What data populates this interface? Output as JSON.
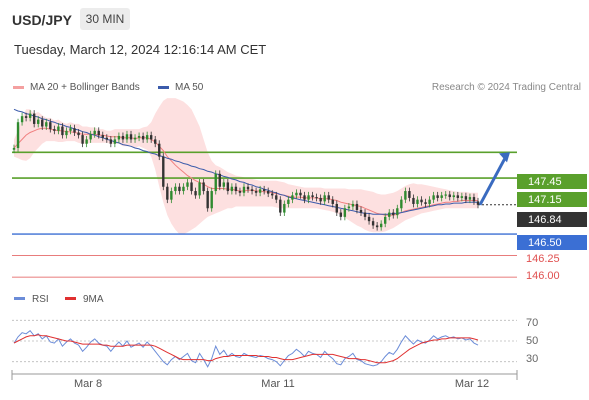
{
  "header": {
    "symbol": "USD/JPY",
    "timeframe": "30 MIN",
    "datetime": "Tuesday, March 12, 2024 12:16:14 AM CET"
  },
  "legend": {
    "items": [
      {
        "label": "MA 20 + Bollinger Bands",
        "color": "#f08080"
      },
      {
        "label": "MA 50",
        "color": "#3b5bab"
      }
    ],
    "credit": "Research © 2024 Trading Central"
  },
  "chart_data": [
    {
      "type": "line",
      "title": "",
      "price_range": [
        145.85,
        148.0
      ],
      "x_ticks": [
        "Mar 8",
        "Mar 11",
        "Mar 12"
      ],
      "levels": [
        {
          "label": "147.45",
          "value": 147.45,
          "role": "resistance",
          "color": "#5aa02c"
        },
        {
          "label": "147.15",
          "value": 147.15,
          "role": "resistance",
          "color": "#5aa02c"
        },
        {
          "label": "146.84",
          "value": 146.84,
          "role": "current",
          "color": "#333333"
        },
        {
          "label": "146.50",
          "value": 146.5,
          "role": "support",
          "color": "#3b6fd4"
        },
        {
          "label": "146.25",
          "value": 146.25,
          "role": "support",
          "color": "#e05050"
        },
        {
          "label": "146.00",
          "value": 146.0,
          "role": "support",
          "color": "#e05050"
        }
      ],
      "close": [
        147.5,
        147.8,
        147.87,
        147.85,
        147.9,
        147.78,
        147.83,
        147.75,
        147.8,
        147.72,
        147.7,
        147.75,
        147.65,
        147.7,
        147.73,
        147.68,
        147.65,
        147.55,
        147.6,
        147.66,
        147.7,
        147.65,
        147.62,
        147.6,
        147.55,
        147.6,
        147.64,
        147.6,
        147.66,
        147.6,
        147.62,
        147.64,
        147.6,
        147.65,
        147.6,
        147.55,
        147.4,
        147.05,
        146.9,
        147.0,
        147.05,
        147.0,
        147.05,
        147.1,
        147.0,
        146.95,
        147.1,
        147.0,
        146.8,
        147.0,
        147.2,
        147.05,
        147.1,
        147.0,
        147.05,
        147.0,
        146.98,
        147.05,
        147.02,
        147.0,
        146.98,
        147.02,
        147.0,
        146.97,
        146.95,
        146.9,
        146.75,
        146.85,
        146.9,
        146.95,
        146.98,
        146.95,
        146.9,
        146.95,
        146.93,
        146.92,
        146.88,
        146.95,
        146.9,
        146.85,
        146.75,
        146.7,
        146.8,
        146.82,
        146.85,
        146.78,
        146.75,
        146.7,
        146.65,
        146.6,
        146.58,
        146.62,
        146.7,
        146.75,
        146.72,
        146.8,
        146.9,
        147.0,
        146.92,
        146.85,
        146.9,
        146.87,
        146.85,
        146.9,
        146.95,
        146.92,
        146.95,
        146.96,
        146.93,
        146.95,
        146.92,
        146.94,
        146.9,
        146.93,
        146.88,
        146.84
      ],
      "ma20": [
        147.5,
        147.55,
        147.6,
        147.65,
        147.68,
        147.7,
        147.72,
        147.73,
        147.73,
        147.72,
        147.71,
        147.7,
        147.7,
        147.69,
        147.69,
        147.68,
        147.67,
        147.66,
        147.66,
        147.66,
        147.66,
        147.65,
        147.65,
        147.64,
        147.63,
        147.63,
        147.63,
        147.62,
        147.62,
        147.62,
        147.61,
        147.62,
        147.62,
        147.62,
        147.6,
        147.57,
        147.52,
        147.47,
        147.4,
        147.35,
        147.3,
        147.26,
        147.22,
        147.18,
        147.15,
        147.12,
        147.1,
        147.08,
        147.05,
        147.03,
        147.03,
        147.03,
        147.03,
        147.02,
        147.02,
        147.01,
        147.0,
        147.0,
        147.01,
        147.01,
        147.0,
        147.0,
        146.99,
        146.99,
        146.98,
        146.97,
        146.96,
        146.95,
        146.94,
        146.93,
        146.93,
        146.93,
        146.92,
        146.92,
        146.92,
        146.92,
        146.91,
        146.91,
        146.91,
        146.9,
        146.89,
        146.87,
        146.86,
        146.85,
        146.84,
        146.83,
        146.82,
        146.8,
        146.78,
        146.76,
        146.74,
        146.73,
        146.72,
        146.72,
        146.72,
        146.73,
        146.75,
        146.77,
        146.78,
        146.79,
        146.8,
        146.81,
        146.82,
        146.83,
        146.84,
        146.85,
        146.86,
        146.87,
        146.87,
        146.88,
        146.88,
        146.89,
        146.89,
        146.89,
        146.89,
        146.89
      ],
      "ma50": [
        147.95,
        147.93,
        147.92,
        147.9,
        147.89,
        147.87,
        147.86,
        147.84,
        147.83,
        147.81,
        147.8,
        147.78,
        147.77,
        147.75,
        147.74,
        147.72,
        147.71,
        147.69,
        147.68,
        147.66,
        147.65,
        147.63,
        147.62,
        147.6,
        147.59,
        147.57,
        147.56,
        147.54,
        147.53,
        147.52,
        147.5,
        147.49,
        147.47,
        147.46,
        147.44,
        147.43,
        147.41,
        147.4,
        147.38,
        147.37,
        147.35,
        147.34,
        147.32,
        147.31,
        147.29,
        147.28,
        147.26,
        147.25,
        147.23,
        147.22,
        147.2,
        147.19,
        147.17,
        147.16,
        147.14,
        147.13,
        147.11,
        147.1,
        147.08,
        147.07,
        147.05,
        147.04,
        147.02,
        147.01,
        146.99,
        146.98,
        146.96,
        146.95,
        146.93,
        146.92,
        146.91,
        146.9,
        146.89,
        146.88,
        146.87,
        146.86,
        146.85,
        146.84,
        146.83,
        146.82,
        146.81,
        146.8,
        146.79,
        146.78,
        146.77,
        146.76,
        146.75,
        146.74,
        146.74,
        146.73,
        146.73,
        146.73,
        146.73,
        146.73,
        146.74,
        146.74,
        146.75,
        146.76,
        146.77,
        146.78,
        146.79,
        146.8,
        146.81,
        146.82,
        146.83,
        146.84,
        146.84,
        146.85,
        146.85,
        146.86,
        146.86,
        146.86,
        146.87,
        146.87,
        146.87,
        146.87
      ],
      "bb_upper": [
        147.6,
        147.7,
        147.85,
        147.95,
        147.95,
        147.9,
        147.92,
        147.88,
        147.85,
        147.85,
        147.82,
        147.83,
        147.8,
        147.78,
        147.8,
        147.78,
        147.78,
        147.75,
        147.75,
        147.74,
        147.74,
        147.72,
        147.72,
        147.7,
        147.7,
        147.72,
        147.72,
        147.72,
        147.72,
        147.72,
        147.72,
        147.72,
        147.74,
        147.75,
        147.8,
        147.9,
        147.98,
        148.05,
        148.08,
        148.08,
        148.08,
        148.06,
        148.04,
        148.0,
        147.95,
        147.85,
        147.75,
        147.6,
        147.45,
        147.35,
        147.3,
        147.28,
        147.25,
        147.22,
        147.2,
        147.18,
        147.17,
        147.16,
        147.15,
        147.14,
        147.13,
        147.12,
        147.12,
        147.12,
        147.12,
        147.12,
        147.11,
        147.1,
        147.08,
        147.07,
        147.06,
        147.05,
        147.04,
        147.04,
        147.04,
        147.04,
        147.04,
        147.03,
        147.03,
        147.03,
        147.03,
        147.03,
        147.03,
        147.02,
        147.02,
        147.02,
        147.02,
        147.01,
        147.0,
        146.99,
        146.97,
        146.96,
        146.96,
        146.97,
        146.98,
        147.0,
        147.03,
        147.06,
        147.08,
        147.09,
        147.08,
        147.08,
        147.07,
        147.06,
        147.05,
        147.04,
        147.03,
        147.02,
        147.01,
        147.0,
        146.99,
        146.99,
        146.99,
        146.98,
        146.98,
        146.98
      ],
      "bb_lower": [
        147.4,
        147.38,
        147.36,
        147.35,
        147.38,
        147.45,
        147.5,
        147.55,
        147.58,
        147.58,
        147.58,
        147.57,
        147.57,
        147.58,
        147.58,
        147.58,
        147.56,
        147.55,
        147.55,
        147.56,
        147.56,
        147.56,
        147.56,
        147.56,
        147.55,
        147.55,
        147.55,
        147.52,
        147.52,
        147.52,
        147.5,
        147.52,
        147.5,
        147.48,
        147.4,
        147.25,
        147.05,
        146.87,
        146.72,
        146.62,
        146.55,
        146.5,
        146.5,
        146.52,
        146.55,
        146.58,
        146.62,
        146.66,
        146.7,
        146.72,
        146.74,
        146.76,
        146.78,
        146.8,
        146.8,
        146.82,
        146.82,
        146.82,
        146.82,
        146.82,
        146.82,
        146.82,
        146.82,
        146.82,
        146.82,
        146.81,
        146.8,
        146.8,
        146.8,
        146.8,
        146.8,
        146.8,
        146.8,
        146.8,
        146.8,
        146.8,
        146.79,
        146.78,
        146.77,
        146.76,
        146.74,
        146.72,
        146.69,
        146.66,
        146.63,
        146.6,
        146.58,
        146.55,
        146.53,
        146.52,
        146.52,
        146.52,
        146.53,
        146.55,
        146.57,
        146.6,
        146.63,
        146.66,
        146.68,
        146.7,
        146.72,
        146.74,
        146.75,
        146.76,
        146.77,
        146.78,
        146.79,
        146.8,
        146.8,
        146.8,
        146.8,
        146.8,
        146.8,
        146.8,
        146.8,
        146.8
      ],
      "forecast": {
        "from": 146.84,
        "to": 147.45,
        "direction": "up"
      }
    },
    {
      "type": "line",
      "title": "",
      "ylim": [
        20,
        80
      ],
      "y_ticks": [
        "70",
        "50",
        "30"
      ],
      "legend": [
        "RSI",
        "9MA"
      ],
      "series": [
        {
          "name": "RSI",
          "color": "#6b8cd8",
          "values": [
            48,
            54,
            58,
            57,
            60,
            55,
            57,
            52,
            55,
            49,
            48,
            52,
            45,
            49,
            52,
            48,
            46,
            40,
            44,
            49,
            52,
            48,
            46,
            45,
            40,
            45,
            49,
            45,
            50,
            44,
            46,
            48,
            44,
            49,
            45,
            40,
            35,
            30,
            27,
            32,
            35,
            32,
            35,
            38,
            31,
            29,
            38,
            32,
            25,
            33,
            45,
            37,
            41,
            35,
            38,
            35,
            34,
            38,
            36,
            35,
            34,
            36,
            35,
            33,
            32,
            30,
            26,
            31,
            36,
            38,
            42,
            39,
            35,
            40,
            38,
            37,
            34,
            40,
            36,
            33,
            28,
            27,
            33,
            35,
            38,
            32,
            31,
            28,
            27,
            26,
            27,
            30,
            35,
            39,
            37,
            42,
            49,
            55,
            51,
            47,
            51,
            49,
            48,
            51,
            55,
            52,
            54,
            55,
            53,
            54,
            52,
            53,
            51,
            52,
            48,
            46
          ]
        },
        {
          "name": "9MA",
          "color": "#e03030",
          "values": [
            48,
            50,
            52,
            54,
            55,
            55,
            56,
            55,
            55,
            54,
            53,
            52,
            51,
            50,
            50,
            49,
            48,
            47,
            47,
            47,
            47,
            47,
            46,
            46,
            45,
            45,
            45,
            45,
            46,
            46,
            46,
            46,
            46,
            46,
            46,
            45,
            43,
            41,
            39,
            37,
            35,
            33,
            32,
            32,
            32,
            32,
            32,
            32,
            31,
            31,
            33,
            34,
            35,
            35,
            36,
            36,
            36,
            36,
            36,
            36,
            36,
            35,
            35,
            35,
            34,
            34,
            33,
            32,
            32,
            32,
            33,
            34,
            35,
            36,
            37,
            37,
            37,
            37,
            37,
            37,
            36,
            35,
            34,
            33,
            33,
            33,
            32,
            32,
            31,
            30,
            29,
            29,
            29,
            30,
            31,
            33,
            36,
            39,
            42,
            44,
            46,
            48,
            49,
            50,
            51,
            51,
            52,
            52,
            53,
            53,
            53,
            53,
            53,
            53,
            52,
            51
          ]
        }
      ],
      "reference_lines": [
        70,
        50,
        30
      ]
    }
  ]
}
